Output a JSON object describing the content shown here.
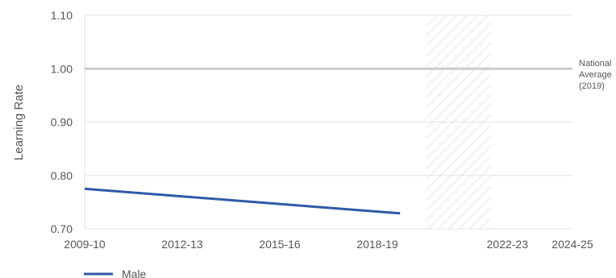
{
  "chart_data": {
    "type": "line",
    "ylabel": "Learning Rate",
    "xlabel": "",
    "y_ticks": [
      "0.70",
      "0.80",
      "0.90",
      "1.00",
      "1.10"
    ],
    "ylim": [
      0.7,
      1.1
    ],
    "x_ticks": [
      {
        "label": "2009-10",
        "x": 2009
      },
      {
        "label": "2012-13",
        "x": 2012
      },
      {
        "label": "2015-16",
        "x": 2015
      },
      {
        "label": "2018-19",
        "x": 2018
      },
      {
        "label": "2022-23",
        "x": 2022
      },
      {
        "label": "2024-25",
        "x": 2024
      }
    ],
    "xlim": [
      2009,
      2024
    ],
    "grid": true,
    "series": [
      {
        "name": "Male",
        "color": "#2f5aa8",
        "points": [
          {
            "x": 2009,
            "y": 0.775
          },
          {
            "x": 2018.7,
            "y": 0.729
          }
        ]
      }
    ],
    "reference_line": {
      "y": 1.0,
      "color": "#cccccc",
      "label_lines": [
        "National",
        "Average",
        "(2019)"
      ]
    },
    "hatched_band": {
      "x_start": 2019.5,
      "x_end": 2021.5
    },
    "legend": {
      "position": "bottom-left"
    }
  }
}
